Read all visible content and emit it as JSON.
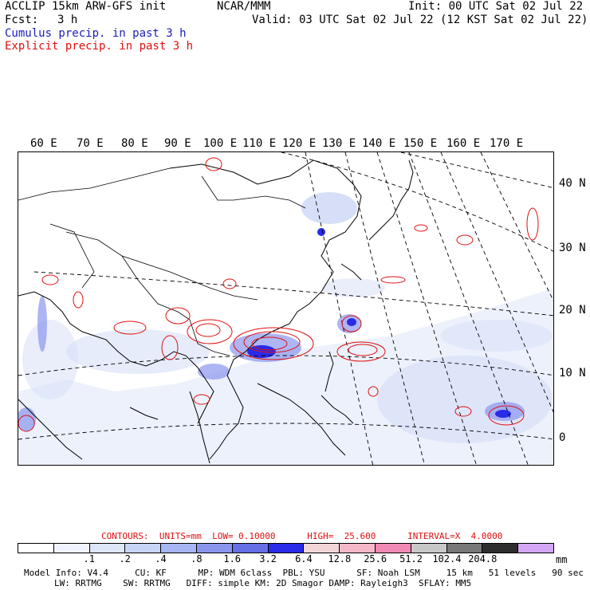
{
  "header": {
    "left1": "ACCLIP 15km ARW-GFS init",
    "center1": "NCAR/MMM",
    "init": "Init: 00 UTC Sat 02 Jul 22",
    "fcst_label": "Fcst:",
    "fcst_value": "3 h",
    "valid": "Valid: 03 UTC Sat 02 Jul 22 (12 KST Sat 02 Jul 22)",
    "cumulus": "Cumulus precip. in past 3 h",
    "explicit": "Explicit precip. in past 3 h",
    "cumulus_color": "#1c1cb8",
    "explicit_color": "#e01010"
  },
  "map": {
    "longitudes": [
      "60 E",
      "70 E",
      "80 E",
      "90 E",
      "100 E",
      "110 E",
      "120 E",
      "130 E",
      "140 E",
      "150 E",
      "160 E",
      "170 E"
    ],
    "latitudes": [
      "40 N",
      "30 N",
      "20 N",
      "10 N",
      "0"
    ]
  },
  "contours": {
    "label": "CONTOURS:  UNITS=mm  LOW= 0.10000      HIGH=  25.600      INTERVAL=X  4.0000"
  },
  "colorbar": {
    "colors": [
      "#ffffff",
      "#f0f3ff",
      "#dde6f8",
      "#c8d4f5",
      "#a7b6f3",
      "#8a95ee",
      "#6670e6",
      "#2a2ae8",
      "#f2d6d6",
      "#f5b8c8",
      "#f08ab4",
      "#c8c8c8",
      "#787878",
      "#2d2d2d",
      "#d4a7f5"
    ],
    "ticks": [
      ".1",
      ".2",
      ".4",
      ".8",
      "1.6",
      "3.2",
      "6.4",
      "12.8",
      "25.6",
      "51.2",
      "102.4",
      "204.8"
    ],
    "units": "mm"
  },
  "model_info": {
    "line1": "Model Info: V4.4     CU: KF      MP: WDM 6class  PBL: YSU      SF: Noah LSM     15 km   51 levels   90 sec",
    "line2": "LW: RRTMG    SW: RRTMG   DIFF: simple KM: 2D Smagor DAMP: Rayleigh3  SFLAY: MM5"
  }
}
